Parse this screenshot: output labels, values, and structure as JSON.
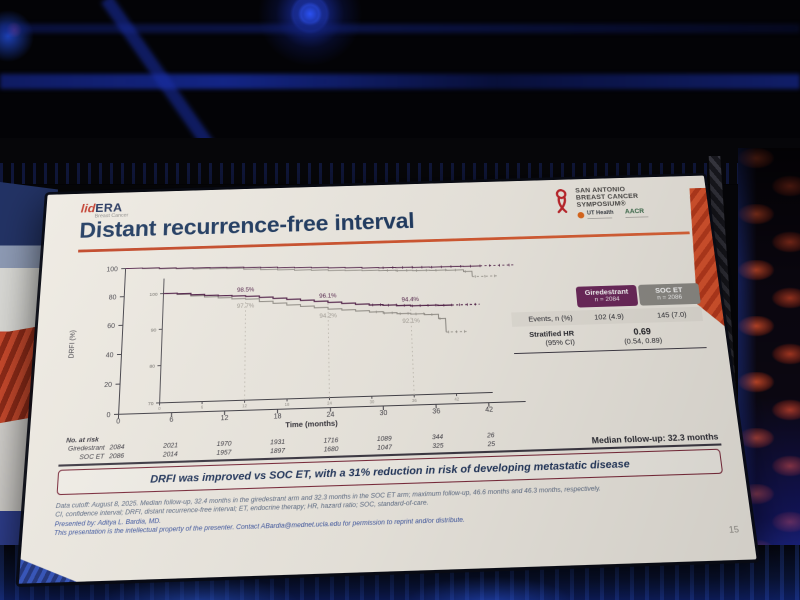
{
  "colors": {
    "accent_orange": "#d9542e",
    "title_navy": "#1f3a60",
    "giredestrant_purple": "#6e2a5d",
    "soc_et_gray": "#8e8c87",
    "banner_border": "#7c2b3c",
    "footnote_blue": "#3c55a0"
  },
  "slide": {
    "brand": {
      "prefix": "lid",
      "suffix": "ERA",
      "subtitle": "Breast Cancer"
    },
    "title": "Distant recurrence-free interval",
    "sabcs": {
      "line1": "SAN ANTONIO",
      "line2": "BREAST CANCER",
      "line3": "SYMPOSIUM®",
      "partner1": "UT Health",
      "partner2": "AACR"
    },
    "results_table": {
      "columns": [
        {
          "name": "Giredestrant",
          "n": "n = 2084"
        },
        {
          "name": "SOC ET",
          "n": "n = 2086"
        }
      ],
      "events_row": {
        "label": "Events, n (%)",
        "values": [
          "102 (4.9)",
          "145 (7.0)"
        ]
      },
      "hr_row": {
        "label": "Stratified HR",
        "label2": "(95% CI)",
        "value": "0.69",
        "value2": "(0.54, 0.89)"
      }
    },
    "median_follow_up": "Median follow-up: 32.3 months",
    "banner": "DRFI was improved vs SOC ET, with a 31% reduction in risk of developing metastatic disease",
    "footnotes": [
      "Data cutoff: August 8, 2025. Median follow-up, 32.4 months in the giredestrant arm and 32.3 months in the SOC ET arm; maximum follow-up, 46.6 months and 46.3 months, respectively.",
      "CI, confidence interval; DRFI, distant recurrence-free interval; ET, endocrine therapy; HR, hazard ratio; SOC, standard-of-care.",
      "Presented by: Aditya L. Bardia, MD.",
      "This presentation is the intellectual property of the presenter. Contact ABardia@mednet.ucla.edu for permission to reprint and/or distribute."
    ],
    "page_number": "15"
  },
  "chart_data": {
    "type": "line",
    "subtype": "kaplan-meier-step",
    "xlabel": "Time (months)",
    "ylabel": "DRFI (%)",
    "xlim": [
      0,
      46
    ],
    "xticks": [
      0,
      6,
      12,
      18,
      24,
      30,
      36,
      42
    ],
    "main_ylim": [
      0,
      100
    ],
    "main_yticks": [
      0,
      20,
      40,
      60,
      80,
      100
    ],
    "inset_ylim": [
      70,
      100
    ],
    "inset_yticks": [
      70,
      80,
      90,
      100
    ],
    "landmark_months": [
      12,
      24,
      36
    ],
    "series": [
      {
        "name": "Giredestrant",
        "color": "#55254c",
        "label_side": "above",
        "dash_from": 42,
        "censor_start": 30.5,
        "landmarks": [
          {
            "month": 12,
            "value": 98.5,
            "text": "98.5%"
          },
          {
            "month": 24,
            "value": 96.1,
            "text": "96.1%"
          },
          {
            "month": 36,
            "value": 94.4,
            "text": "94.4%"
          }
        ],
        "points": [
          [
            0,
            100
          ],
          [
            2,
            99.8
          ],
          [
            4,
            99.4
          ],
          [
            6,
            99.1
          ],
          [
            8,
            98.9
          ],
          [
            10,
            98.7
          ],
          [
            12,
            98.5
          ],
          [
            14,
            98.1
          ],
          [
            16,
            97.7
          ],
          [
            18,
            97.3
          ],
          [
            20,
            96.9
          ],
          [
            22,
            96.5
          ],
          [
            24,
            96.1
          ],
          [
            26,
            95.7
          ],
          [
            28,
            95.3
          ],
          [
            30,
            95.0
          ],
          [
            32,
            94.8
          ],
          [
            34,
            94.6
          ],
          [
            36,
            94.4
          ],
          [
            40,
            94.3
          ],
          [
            42,
            94.3
          ],
          [
            46,
            94.2
          ]
        ]
      },
      {
        "name": "SOC ET",
        "color": "#97938c",
        "label_side": "below",
        "dash_from": 41,
        "censor_start": 31,
        "landmarks": [
          {
            "month": 12,
            "value": 97.7,
            "text": "97.7%"
          },
          {
            "month": 24,
            "value": 94.2,
            "text": "94.2%"
          },
          {
            "month": 36,
            "value": 92.1,
            "text": "92.1%"
          }
        ],
        "points": [
          [
            0,
            100
          ],
          [
            2,
            99.6
          ],
          [
            4,
            99.1
          ],
          [
            6,
            98.7
          ],
          [
            8,
            98.3
          ],
          [
            10,
            97.9
          ],
          [
            12,
            97.7
          ],
          [
            14,
            96.9
          ],
          [
            16,
            96.3
          ],
          [
            18,
            95.7
          ],
          [
            20,
            95.2
          ],
          [
            22,
            94.7
          ],
          [
            24,
            94.2
          ],
          [
            26,
            93.8
          ],
          [
            28,
            93.4
          ],
          [
            30,
            93.0
          ],
          [
            32,
            92.6
          ],
          [
            34,
            92.3
          ],
          [
            36,
            92.1
          ],
          [
            38,
            91.8
          ],
          [
            40,
            90.6
          ],
          [
            41,
            86.8
          ],
          [
            44,
            86.8
          ]
        ]
      }
    ],
    "at_risk": {
      "label": "No. at risk",
      "rows": [
        {
          "name": "Giredestrant",
          "values": [
            "2084",
            "2021",
            "1970",
            "1931",
            "1716",
            "1089",
            "344",
            "26"
          ]
        },
        {
          "name": "SOC ET",
          "values": [
            "2086",
            "2014",
            "1957",
            "1897",
            "1680",
            "1047",
            "325",
            "25"
          ]
        }
      ]
    }
  }
}
